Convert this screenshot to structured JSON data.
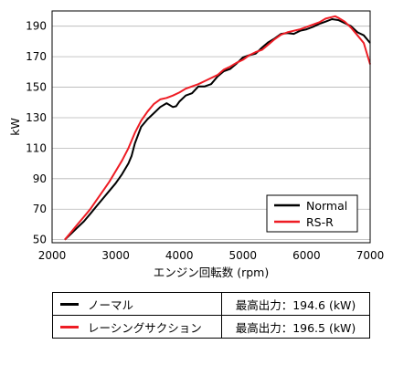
{
  "chart_data": {
    "type": "line",
    "xlabel": "エンジン回転数 (rpm)",
    "ylabel": "kW",
    "xlim": [
      2000,
      7000
    ],
    "ylim": [
      48,
      200
    ],
    "xticks": [
      2000,
      3000,
      4000,
      5000,
      6000,
      7000
    ],
    "yticks": [
      50,
      70,
      90,
      110,
      130,
      150,
      170,
      190
    ],
    "grid": "horizontal",
    "legend_position": "bottom-right",
    "series": [
      {
        "name": "Normal",
        "color": "#000000",
        "x": [
          2200,
          2300,
          2400,
          2500,
          2600,
          2700,
          2800,
          2900,
          3000,
          3100,
          3200,
          3250,
          3300,
          3400,
          3500,
          3600,
          3700,
          3800,
          3900,
          3950,
          4000,
          4100,
          4200,
          4300,
          4400,
          4500,
          4600,
          4700,
          4800,
          4900,
          5000,
          5100,
          5200,
          5300,
          5400,
          5500,
          5600,
          5700,
          5800,
          5900,
          6000,
          6100,
          6200,
          6300,
          6400,
          6500,
          6600,
          6700,
          6800,
          6900,
          7000
        ],
        "values": [
          50,
          54,
          58,
          62,
          67,
          72,
          77,
          82,
          87,
          93,
          100,
          105,
          113,
          124,
          129,
          133,
          137,
          139.5,
          137,
          137.5,
          140.5,
          144.5,
          146,
          150.5,
          150.5,
          152,
          157,
          160.5,
          162,
          165.5,
          169.5,
          171,
          172,
          176,
          179.5,
          182,
          185,
          185.5,
          185,
          187,
          188,
          189.5,
          191.5,
          193,
          194.6,
          194,
          192,
          190,
          186,
          184,
          179
        ]
      },
      {
        "name": "RS-R",
        "color": "#ee1c24",
        "x": [
          2200,
          2300,
          2400,
          2500,
          2600,
          2700,
          2800,
          2900,
          3000,
          3100,
          3200,
          3300,
          3400,
          3500,
          3600,
          3700,
          3800,
          3900,
          4000,
          4100,
          4200,
          4300,
          4400,
          4500,
          4600,
          4700,
          4800,
          4900,
          5000,
          5100,
          5200,
          5300,
          5400,
          5500,
          5600,
          5700,
          5800,
          5900,
          6000,
          6100,
          6200,
          6300,
          6400,
          6450,
          6500,
          6600,
          6700,
          6800,
          6900,
          7000
        ],
        "values": [
          50,
          55,
          60,
          65,
          70,
          76,
          82,
          88,
          95,
          102,
          110,
          120,
          128,
          134,
          139,
          142,
          143,
          144.5,
          146.5,
          149,
          150.5,
          152,
          154,
          156,
          158,
          161.5,
          163.5,
          166,
          168,
          171,
          173,
          174.5,
          178,
          181.5,
          184.5,
          186,
          187,
          188,
          189.5,
          191,
          192.5,
          195,
          196,
          196.5,
          195.5,
          193,
          189,
          184,
          179,
          165
        ]
      }
    ]
  },
  "table": {
    "rows": [
      {
        "name": "ノーマル",
        "color": "#000000",
        "value": "最高出力：194.6 (kW)"
      },
      {
        "name": "レーシングサクション",
        "color": "#ee1c24",
        "value": "最高出力：196.5 (kW)"
      }
    ]
  }
}
